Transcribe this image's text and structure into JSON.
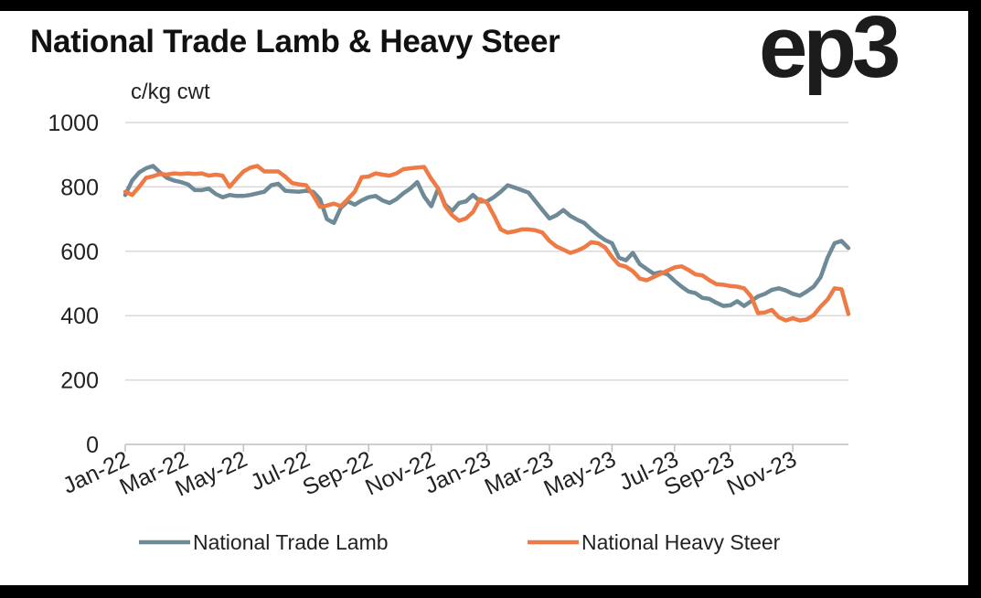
{
  "chart_data": {
    "type": "line",
    "title": "National Trade Lamb & Heavy Steer",
    "ylabel": "c/kg cwt",
    "xlabel": "",
    "ylim": [
      0,
      1000
    ],
    "yticks": [
      0,
      200,
      400,
      600,
      800,
      1000
    ],
    "xlim": [
      0,
      104
    ],
    "xticks": [
      {
        "label": "Jan-22",
        "x": 0
      },
      {
        "label": "Mar-22",
        "x": 8.5
      },
      {
        "label": "May-22",
        "x": 17
      },
      {
        "label": "Jul-22",
        "x": 26
      },
      {
        "label": "Sep-22",
        "x": 35
      },
      {
        "label": "Nov-22",
        "x": 44
      },
      {
        "label": "Jan-23",
        "x": 52
      },
      {
        "label": "Mar-23",
        "x": 61
      },
      {
        "label": "May-23",
        "x": 70
      },
      {
        "label": "Jul-23",
        "x": 79
      },
      {
        "label": "Sep-23",
        "x": 87
      },
      {
        "label": "Nov-23",
        "x": 96
      }
    ],
    "series": [
      {
        "name": "National Trade Lamb",
        "color": "#6e8a96",
        "points": [
          [
            0,
            775
          ],
          [
            1,
            820
          ],
          [
            2,
            845
          ],
          [
            3,
            858
          ],
          [
            4,
            865
          ],
          [
            5,
            845
          ],
          [
            6,
            828
          ],
          [
            7,
            820
          ],
          [
            8,
            815
          ],
          [
            9,
            808
          ],
          [
            10,
            790
          ],
          [
            11,
            790
          ],
          [
            12,
            795
          ],
          [
            13,
            778
          ],
          [
            14,
            768
          ],
          [
            15,
            775
          ],
          [
            16,
            772
          ],
          [
            17,
            772
          ],
          [
            18,
            775
          ],
          [
            19,
            780
          ],
          [
            20,
            785
          ],
          [
            21,
            805
          ],
          [
            22,
            810
          ],
          [
            23,
            788
          ],
          [
            24,
            786
          ],
          [
            25,
            785
          ],
          [
            26,
            788
          ],
          [
            27,
            785
          ],
          [
            28,
            762
          ],
          [
            29,
            700
          ],
          [
            30,
            688
          ],
          [
            31,
            735
          ],
          [
            32,
            755
          ],
          [
            33,
            745
          ],
          [
            34,
            758
          ],
          [
            35,
            768
          ],
          [
            36,
            772
          ],
          [
            37,
            758
          ],
          [
            38,
            750
          ],
          [
            39,
            762
          ],
          [
            40,
            780
          ],
          [
            41,
            795
          ],
          [
            42,
            815
          ],
          [
            43,
            770
          ],
          [
            44,
            740
          ],
          [
            45,
            795
          ],
          [
            46,
            745
          ],
          [
            47,
            725
          ],
          [
            48,
            750
          ],
          [
            49,
            755
          ],
          [
            50,
            775
          ],
          [
            51,
            755
          ],
          [
            52,
            755
          ],
          [
            53,
            768
          ],
          [
            54,
            785
          ],
          [
            55,
            805
          ],
          [
            56,
            798
          ],
          [
            57,
            790
          ],
          [
            58,
            782
          ],
          [
            59,
            755
          ],
          [
            60,
            728
          ],
          [
            61,
            702
          ],
          [
            62,
            712
          ],
          [
            63,
            728
          ],
          [
            64,
            710
          ],
          [
            65,
            698
          ],
          [
            66,
            688
          ],
          [
            67,
            668
          ],
          [
            68,
            650
          ],
          [
            69,
            635
          ],
          [
            70,
            625
          ],
          [
            71,
            580
          ],
          [
            72,
            572
          ],
          [
            73,
            595
          ],
          [
            74,
            560
          ],
          [
            75,
            545
          ],
          [
            76,
            530
          ],
          [
            77,
            535
          ],
          [
            78,
            528
          ],
          [
            79,
            508
          ],
          [
            80,
            490
          ],
          [
            81,
            475
          ],
          [
            82,
            470
          ],
          [
            83,
            455
          ],
          [
            84,
            452
          ],
          [
            85,
            440
          ],
          [
            86,
            430
          ],
          [
            87,
            432
          ],
          [
            88,
            445
          ],
          [
            89,
            430
          ],
          [
            90,
            445
          ],
          [
            91,
            460
          ],
          [
            92,
            468
          ],
          [
            93,
            480
          ],
          [
            94,
            485
          ],
          [
            95,
            478
          ],
          [
            96,
            468
          ],
          [
            97,
            462
          ],
          [
            98,
            475
          ],
          [
            99,
            490
          ],
          [
            100,
            520
          ],
          [
            101,
            580
          ],
          [
            102,
            625
          ],
          [
            103,
            632
          ],
          [
            104,
            610
          ]
        ]
      },
      {
        "name": "National Heavy Steer",
        "color": "#ee7a45",
        "points": [
          [
            0,
            785
          ],
          [
            1,
            775
          ],
          [
            2,
            800
          ],
          [
            3,
            828
          ],
          [
            4,
            833
          ],
          [
            5,
            840
          ],
          [
            6,
            838
          ],
          [
            7,
            842
          ],
          [
            8,
            840
          ],
          [
            9,
            842
          ],
          [
            10,
            840
          ],
          [
            11,
            842
          ],
          [
            12,
            835
          ],
          [
            13,
            838
          ],
          [
            14,
            835
          ],
          [
            15,
            800
          ],
          [
            16,
            825
          ],
          [
            17,
            848
          ],
          [
            18,
            860
          ],
          [
            19,
            865
          ],
          [
            20,
            848
          ],
          [
            21,
            848
          ],
          [
            22,
            848
          ],
          [
            23,
            832
          ],
          [
            24,
            812
          ],
          [
            25,
            808
          ],
          [
            26,
            805
          ],
          [
            27,
            775
          ],
          [
            28,
            738
          ],
          [
            29,
            742
          ],
          [
            30,
            748
          ],
          [
            31,
            740
          ],
          [
            32,
            762
          ],
          [
            33,
            785
          ],
          [
            34,
            830
          ],
          [
            35,
            832
          ],
          [
            36,
            842
          ],
          [
            37,
            838
          ],
          [
            38,
            835
          ],
          [
            39,
            842
          ],
          [
            40,
            855
          ],
          [
            41,
            858
          ],
          [
            42,
            860
          ],
          [
            43,
            862
          ],
          [
            44,
            825
          ],
          [
            45,
            795
          ],
          [
            46,
            740
          ],
          [
            47,
            712
          ],
          [
            48,
            695
          ],
          [
            49,
            702
          ],
          [
            50,
            722
          ],
          [
            51,
            762
          ],
          [
            52,
            752
          ],
          [
            53,
            712
          ],
          [
            54,
            668
          ],
          [
            55,
            658
          ],
          [
            56,
            662
          ],
          [
            57,
            668
          ],
          [
            58,
            668
          ],
          [
            59,
            665
          ],
          [
            60,
            658
          ],
          [
            61,
            632
          ],
          [
            62,
            615
          ],
          [
            63,
            605
          ],
          [
            64,
            595
          ],
          [
            65,
            602
          ],
          [
            66,
            612
          ],
          [
            67,
            628
          ],
          [
            68,
            625
          ],
          [
            69,
            612
          ],
          [
            70,
            582
          ],
          [
            71,
            558
          ],
          [
            72,
            552
          ],
          [
            73,
            538
          ],
          [
            74,
            515
          ],
          [
            75,
            510
          ],
          [
            76,
            520
          ],
          [
            77,
            530
          ],
          [
            78,
            540
          ],
          [
            79,
            550
          ],
          [
            80,
            553
          ],
          [
            81,
            542
          ],
          [
            82,
            528
          ],
          [
            83,
            525
          ],
          [
            84,
            510
          ],
          [
            85,
            498
          ],
          [
            86,
            496
          ],
          [
            87,
            492
          ],
          [
            88,
            490
          ],
          [
            89,
            485
          ],
          [
            90,
            460
          ],
          [
            91,
            408
          ],
          [
            92,
            410
          ],
          [
            93,
            418
          ],
          [
            94,
            395
          ],
          [
            95,
            385
          ],
          [
            96,
            392
          ],
          [
            97,
            385
          ],
          [
            98,
            388
          ],
          [
            99,
            402
          ],
          [
            100,
            428
          ],
          [
            101,
            450
          ],
          [
            102,
            485
          ],
          [
            103,
            482
          ],
          [
            104,
            405
          ]
        ]
      }
    ],
    "legend": {
      "placement": "bottom"
    },
    "grid": true
  },
  "logo": {
    "text": "ep3"
  }
}
